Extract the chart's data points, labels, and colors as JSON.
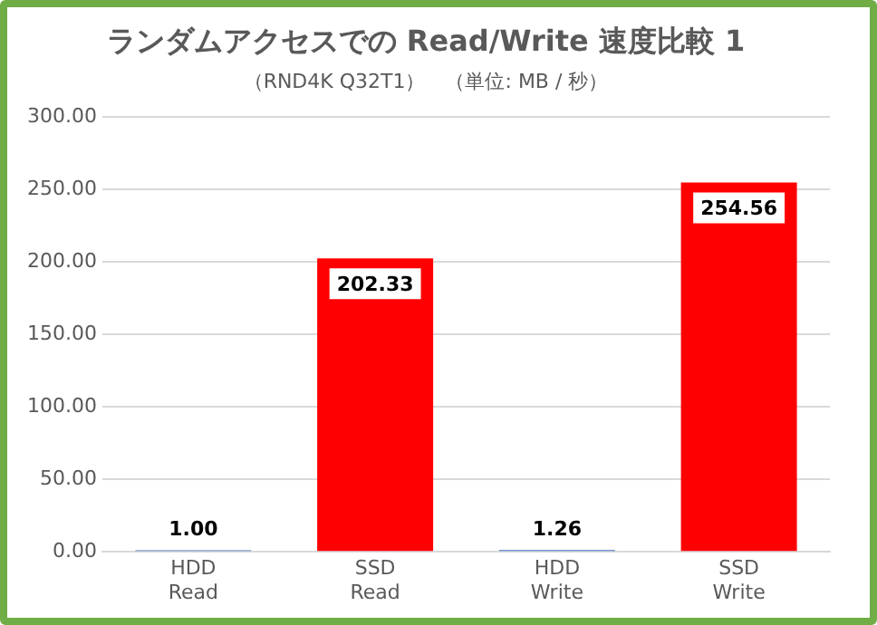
{
  "chart_data": {
    "type": "bar",
    "title": "ランダムアクセスでの Read/Write 速度比較 1",
    "subtitle": "（RND4K Q32T1）　（単位: MB / 秒）",
    "categories": [
      "HDD\nRead",
      "SSD\nRead",
      "HDD\nWrite",
      "SSD\nWrite"
    ],
    "values": [
      1.0,
      202.33,
      1.26,
      254.56
    ],
    "colors": [
      "#4472c4",
      "#ff0000",
      "#4472c4",
      "#ff0000"
    ],
    "value_labels": [
      "1.00",
      "202.33",
      "1.26",
      "254.56"
    ],
    "ylim": [
      0,
      300
    ],
    "yticks": [
      {
        "value": 0,
        "label": "0.00"
      },
      {
        "value": 50,
        "label": "50.00"
      },
      {
        "value": 100,
        "label": "100.00"
      },
      {
        "value": 150,
        "label": "150.00"
      },
      {
        "value": 200,
        "label": "200.00"
      },
      {
        "value": 250,
        "label": "250.00"
      },
      {
        "value": 300,
        "label": "300.00"
      }
    ],
    "grid": "y",
    "legend": false
  }
}
